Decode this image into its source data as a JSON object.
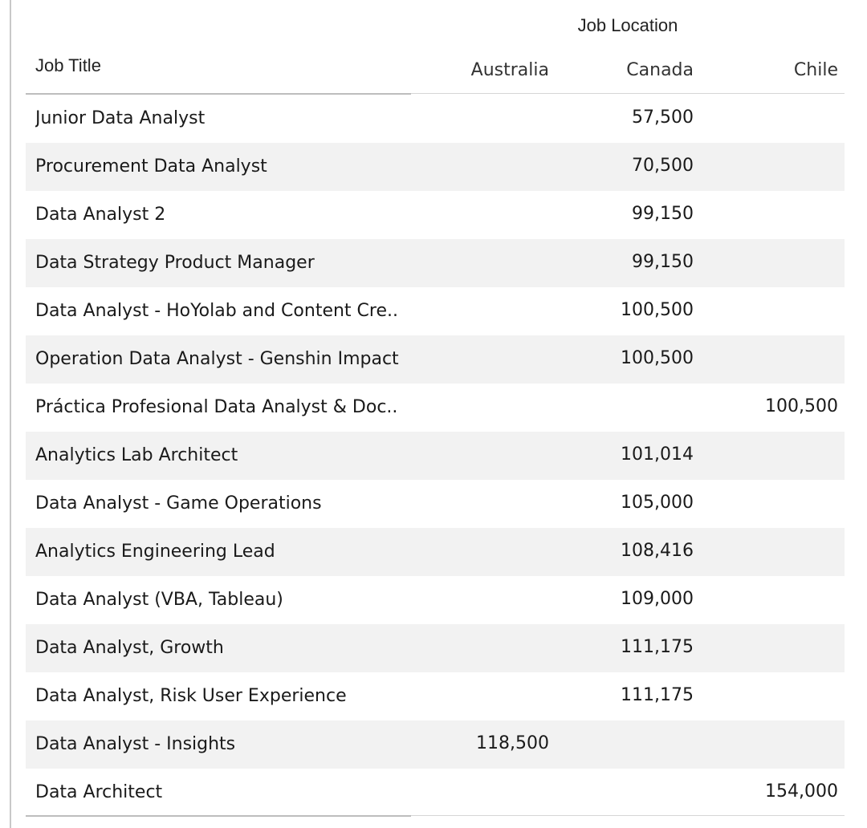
{
  "chart_data": {
    "type": "table",
    "column_group_label": "Job Location",
    "row_header_label": "Job Title",
    "columns": [
      "Australia",
      "Canada",
      "Chile"
    ],
    "rows": [
      {
        "title": "Junior Data Analyst",
        "values": [
          "",
          "57,500",
          ""
        ]
      },
      {
        "title": "Procurement Data Analyst",
        "values": [
          "",
          "70,500",
          ""
        ]
      },
      {
        "title": "Data Analyst 2",
        "values": [
          "",
          "99,150",
          ""
        ]
      },
      {
        "title": "Data Strategy Product Manager",
        "values": [
          "",
          "99,150",
          ""
        ]
      },
      {
        "title": "Data Analyst - HoYolab and Content Cre..",
        "values": [
          "",
          "100,500",
          ""
        ]
      },
      {
        "title": "Operation Data Analyst - Genshin Impact",
        "values": [
          "",
          "100,500",
          ""
        ]
      },
      {
        "title": "Práctica Profesional Data Analyst & Doc..",
        "values": [
          "",
          "",
          "100,500"
        ]
      },
      {
        "title": "Analytics Lab Architect",
        "values": [
          "",
          "101,014",
          ""
        ]
      },
      {
        "title": "Data Analyst - Game Operations",
        "values": [
          "",
          "105,000",
          ""
        ]
      },
      {
        "title": "Analytics Engineering Lead",
        "values": [
          "",
          "108,416",
          ""
        ]
      },
      {
        "title": "Data Analyst (VBA, Tableau)",
        "values": [
          "",
          "109,000",
          ""
        ]
      },
      {
        "title": "Data Analyst, Growth",
        "values": [
          "",
          "111,175",
          ""
        ]
      },
      {
        "title": "Data Analyst, Risk User Experience",
        "values": [
          "",
          "111,175",
          ""
        ]
      },
      {
        "title": "Data Analyst - Insights",
        "values": [
          "118,500",
          "",
          ""
        ]
      },
      {
        "title": "Data Architect",
        "values": [
          "",
          "",
          "154,000"
        ]
      }
    ],
    "banding": true
  }
}
